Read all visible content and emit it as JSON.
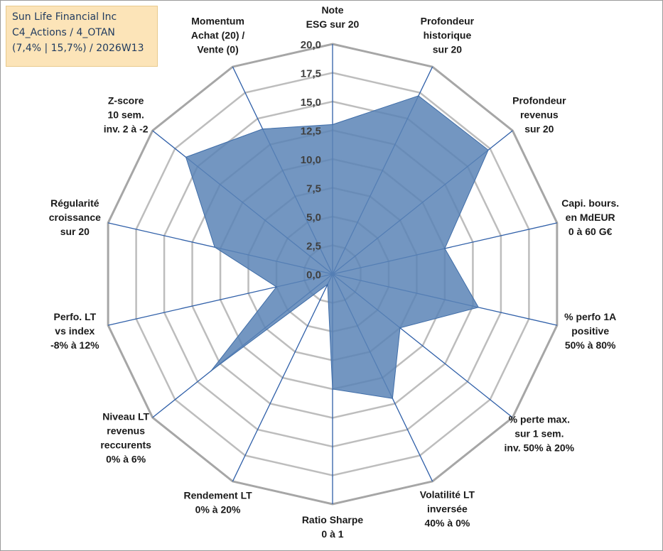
{
  "header": {
    "line1": "Sun Life Financial Inc",
    "line2": "C4_Actions / 4_OTAN",
    "line3": "(7,4% | 15,7%) / 2026W13"
  },
  "chart_data": {
    "type": "radar",
    "title": "",
    "rmin": 0,
    "rmax": 20,
    "ticks": [
      "0,0",
      "2,5",
      "5,0",
      "7,5",
      "10,0",
      "12,5",
      "15,0",
      "17,5",
      "20,0"
    ],
    "axes": [
      {
        "label": [
          "Note",
          "ESG sur 20"
        ],
        "value": 13.0
      },
      {
        "label": [
          "Profondeur",
          "historique",
          "sur 20"
        ],
        "value": 17.2
      },
      {
        "label": [
          "Profondeur",
          "revenus",
          "sur 20"
        ],
        "value": 17.3
      },
      {
        "label": [
          "Capi. bours.",
          "en MdEUR",
          "0 à 60 G€"
        ],
        "value": 10.0
      },
      {
        "label": [
          "% perfo 1A",
          "positive",
          "50% à 80%"
        ],
        "value": 13.0
      },
      {
        "label": [
          "% perte max.",
          "sur 1 sem.",
          "inv. 50% à 20%"
        ],
        "value": 7.5
      },
      {
        "label": [
          "Volatilité LT",
          "inversée",
          "40% à 0%"
        ],
        "value": 12.0
      },
      {
        "label": [
          "Ratio Sharpe",
          "0 à 1"
        ],
        "value": 10.0
      },
      {
        "label": [
          "Rendement LT",
          "0% à 20%"
        ],
        "value": 1.0
      },
      {
        "label": [
          "Niveau LT",
          "revenus",
          "reccurents",
          "0% à 6%"
        ],
        "value": 13.5
      },
      {
        "label": [
          "Perfo. LT",
          "vs index",
          "-8% à 12%"
        ],
        "value": 5.0
      },
      {
        "label": [
          "Régularité",
          "croissance",
          "sur 20"
        ],
        "value": 10.5
      },
      {
        "label": [
          "Z-score",
          "10 sem.",
          "inv. 2 à -2"
        ],
        "value": 16.3
      },
      {
        "label": [
          "Momentum",
          "Achat (20) /",
          "Vente (0)"
        ],
        "value": 14.0
      }
    ],
    "colors": {
      "fill": "#5b84b6",
      "stroke": "#3f6da8",
      "spoke": "#2f5fa8",
      "grid": "#bdbdbd",
      "outer": "#a6a6a6"
    }
  }
}
